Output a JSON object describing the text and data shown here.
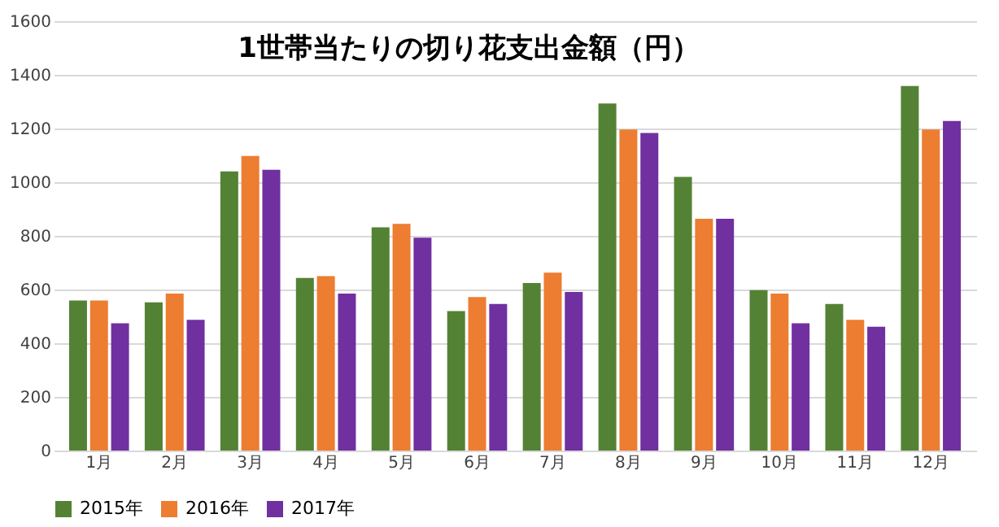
{
  "chart_data": {
    "type": "bar",
    "title": "1世帯当たりの切り花支出金額（円）",
    "categories": [
      "1月",
      "2月",
      "3月",
      "4月",
      "5月",
      "6月",
      "7月",
      "8月",
      "9月",
      "10月",
      "11月",
      "12月"
    ],
    "series": [
      {
        "name": "2015年",
        "color": "#548235",
        "values": [
          559,
          552,
          1040,
          643,
          832,
          520,
          624,
          1293,
          1020,
          598,
          546,
          1358
        ]
      },
      {
        "name": "2016年",
        "color": "#ed7d31",
        "values": [
          559,
          585,
          1098,
          650,
          845,
          572,
          663,
          1196,
          864,
          585,
          487,
          1196
        ]
      },
      {
        "name": "2017年",
        "color": "#7030a0",
        "values": [
          474,
          487,
          1046,
          585,
          793,
          546,
          591,
          1183,
          864,
          474,
          461,
          1228
        ]
      }
    ],
    "ylim": [
      0,
      1600
    ],
    "yticks": [
      0,
      200,
      400,
      600,
      800,
      1000,
      1200,
      1400,
      1600
    ],
    "grid": "y",
    "legend": "bottom"
  }
}
